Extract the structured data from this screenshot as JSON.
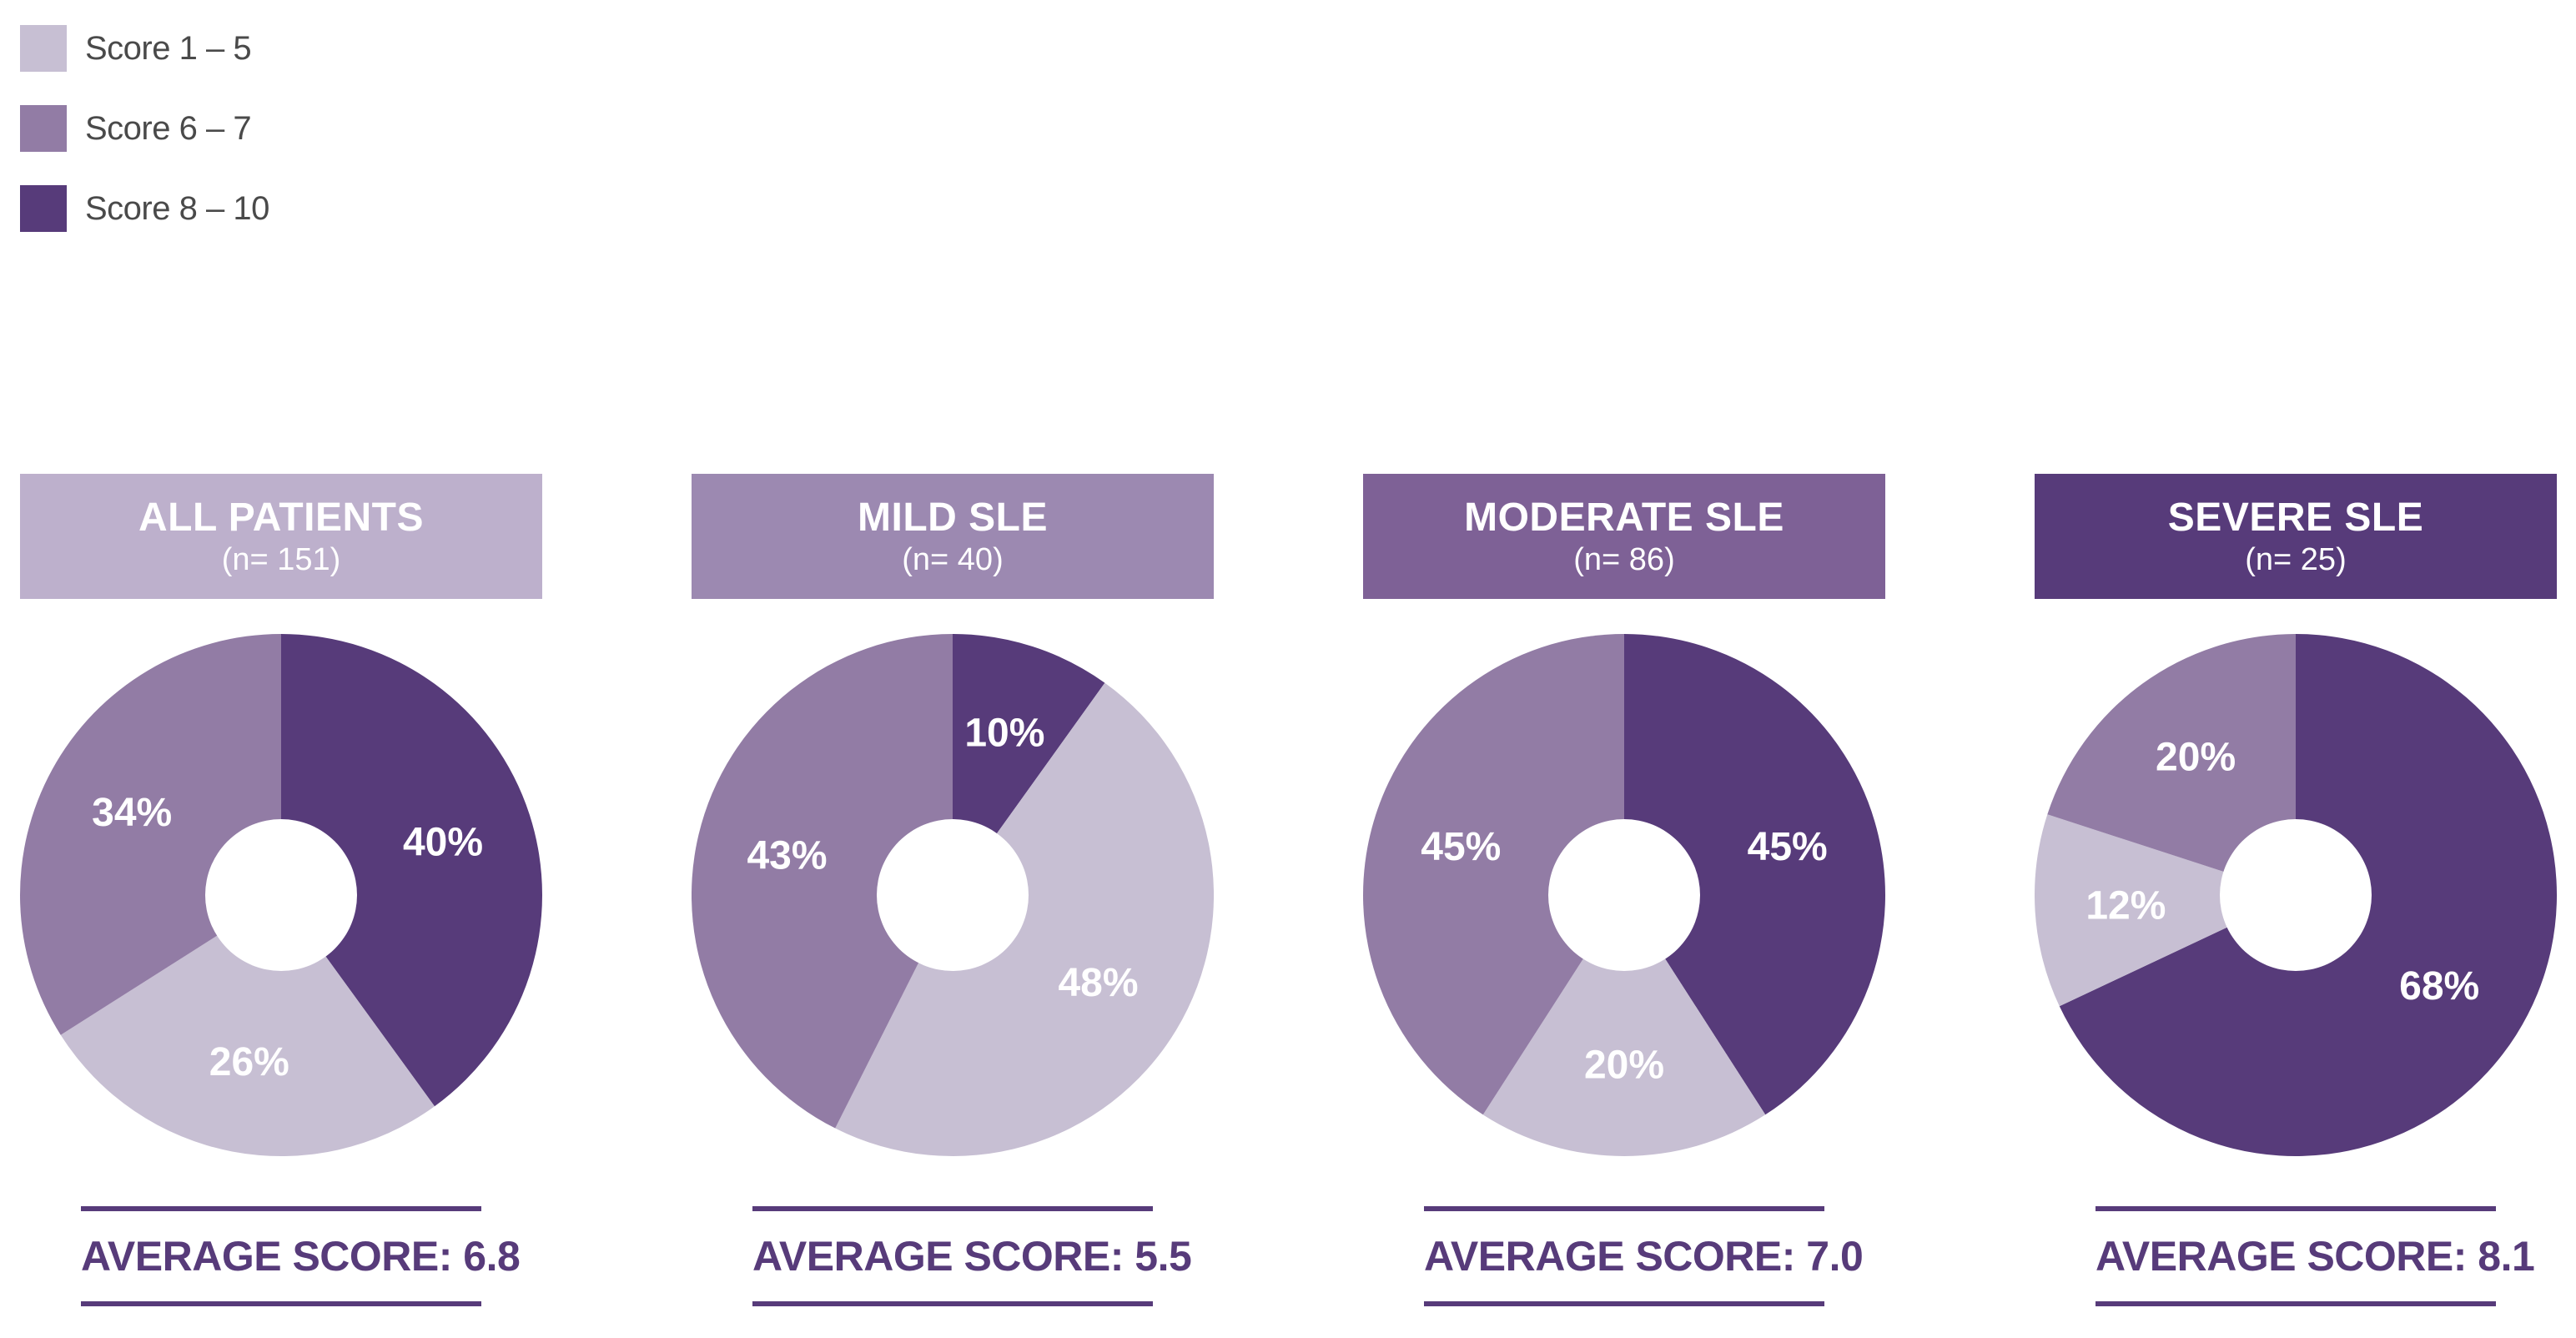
{
  "legend": [
    {
      "label": "Score 1 – 5",
      "color": "#c7bfd3"
    },
    {
      "label": "Score 6 – 7",
      "color": "#927ca5"
    },
    {
      "label": "Score 8 – 10",
      "color": "#573b7a"
    }
  ],
  "chart_data": [
    {
      "type": "pie",
      "title": "ALL PATIENTS",
      "subtitle": "(n= 151)",
      "header_color": "#bdb0cc",
      "categories": [
        "Score 1 – 5",
        "Score 6 – 7",
        "Score 8 – 10"
      ],
      "values": [
        26,
        34,
        40
      ],
      "labels": [
        "26%",
        "34%",
        "40%"
      ],
      "average_label": "AVERAGE SCORE: 6.8"
    },
    {
      "type": "pie",
      "title": "MILD SLE",
      "subtitle": "(n= 40)",
      "header_color": "#9c89b1",
      "categories": [
        "Score 1 – 5",
        "Score 6 – 7",
        "Score 8 – 10"
      ],
      "values": [
        48,
        43,
        10
      ],
      "labels": [
        "48%",
        "43%",
        "10%"
      ],
      "average_label": "AVERAGE SCORE: 5.5"
    },
    {
      "type": "pie",
      "title": "MODERATE SLE",
      "subtitle": "(n= 86)",
      "header_color": "#7e6196",
      "categories": [
        "Score 1 – 5",
        "Score 6 – 7",
        "Score 8 – 10"
      ],
      "values": [
        20,
        45,
        45
      ],
      "labels": [
        "20%",
        "45%",
        "45%"
      ],
      "average_label": "AVERAGE SCORE: 7.0"
    },
    {
      "type": "pie",
      "title": "SEVERE SLE",
      "subtitle": "(n= 25)",
      "header_color": "#573b7a",
      "categories": [
        "Score 1 – 5",
        "Score 6 – 7",
        "Score 8 – 10"
      ],
      "values": [
        12,
        20,
        68
      ],
      "labels": [
        "12%",
        "20%",
        "68%"
      ],
      "average_label": "AVERAGE SCORE: 8.1"
    }
  ]
}
